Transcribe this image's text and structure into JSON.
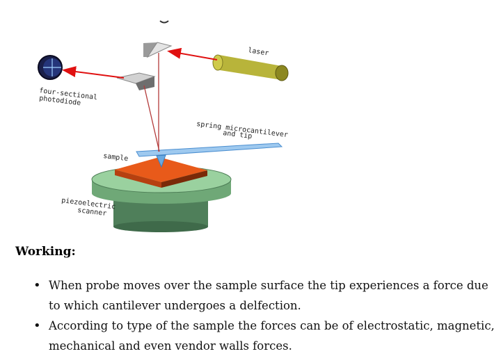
{
  "diagram": {
    "labels": {
      "laser": "laser",
      "photodiode_line1": "four-sectional",
      "photodiode_line2": "photodiode",
      "cantilever_line1": "spring microcantilever",
      "cantilever_line2": "and tip",
      "sample": "sample",
      "scanner_line1": "piezoelectric",
      "scanner_line2": "scanner"
    }
  },
  "section": {
    "heading": "Working:",
    "bullets": [
      "When probe moves over the sample surface the tip experiences a force due to which cantilever undergoes a delfection.",
      "According to type of the sample the forces can be of electrostatic, magnetic, mechanical and even vendor walls forces."
    ]
  }
}
